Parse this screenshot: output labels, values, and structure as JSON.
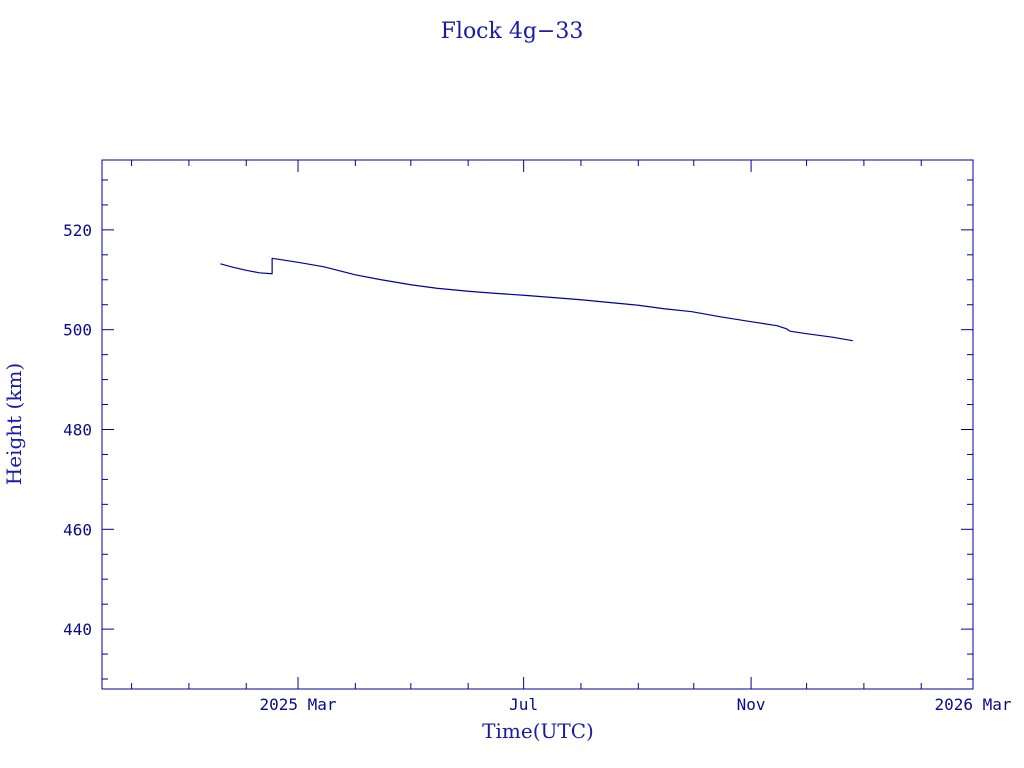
{
  "chart_data": {
    "type": "line",
    "title": "Flock 4g−33",
    "xlabel": "Time(UTC)",
    "ylabel": "Height (km)",
    "ylim": [
      428,
      534
    ],
    "xlim": [
      "2024-11-15",
      "2026-03-01"
    ],
    "y_ticks": [
      440,
      460,
      480,
      500,
      520
    ],
    "x_ticks": [
      {
        "date": "2025-03-01",
        "label": "2025 Mar"
      },
      {
        "date": "2025-07-01",
        "label": "Jul"
      },
      {
        "date": "2025-11-01",
        "label": "Nov"
      },
      {
        "date": "2026-03-01",
        "label": "2026 Mar"
      }
    ],
    "grid": false,
    "legend": "none",
    "color": "#0000a0",
    "series": [
      {
        "points": [
          [
            "2025-01-18",
            513.2
          ],
          [
            "2025-01-25",
            512.5
          ],
          [
            "2025-02-01",
            511.9
          ],
          [
            "2025-02-08",
            511.4
          ],
          [
            "2025-02-15",
            511.2
          ],
          [
            "2025-02-15",
            514.3
          ],
          [
            "2025-03-01",
            513.5
          ],
          [
            "2025-03-15",
            512.6
          ],
          [
            "2025-04-01",
            511.0
          ],
          [
            "2025-04-15",
            510.0
          ],
          [
            "2025-05-01",
            509.0
          ],
          [
            "2025-05-15",
            508.3
          ],
          [
            "2025-06-01",
            507.7
          ],
          [
            "2025-06-15",
            507.3
          ],
          [
            "2025-07-01",
            506.9
          ],
          [
            "2025-07-15",
            506.5
          ],
          [
            "2025-08-01",
            506.0
          ],
          [
            "2025-08-15",
            505.5
          ],
          [
            "2025-09-01",
            504.9
          ],
          [
            "2025-09-15",
            504.2
          ],
          [
            "2025-09-30",
            503.6
          ],
          [
            "2025-10-15",
            502.6
          ],
          [
            "2025-11-01",
            501.6
          ],
          [
            "2025-11-15",
            500.8
          ],
          [
            "2025-11-20",
            500.2
          ],
          [
            "2025-11-22",
            499.7
          ],
          [
            "2025-12-01",
            499.2
          ],
          [
            "2025-12-15",
            498.5
          ],
          [
            "2025-12-26",
            497.8
          ]
        ]
      }
    ]
  }
}
